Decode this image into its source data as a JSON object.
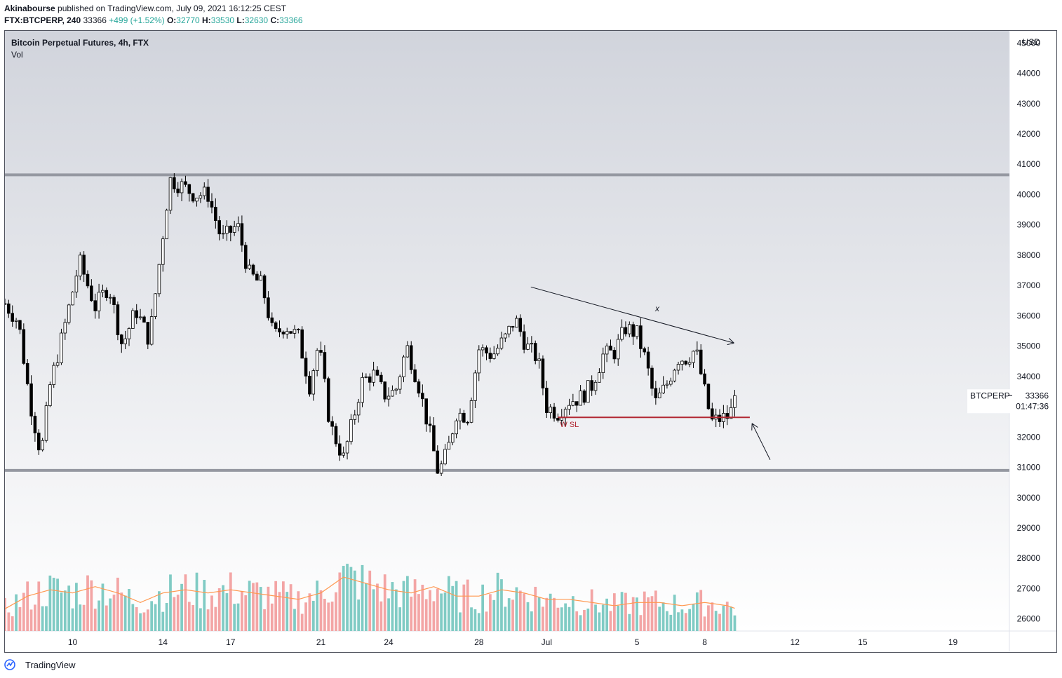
{
  "header": {
    "author": "Akinabourse",
    "published_text": "published on TradingView.com, July 09, 2021 16:12:25 CEST",
    "symbol_line": "FTX:BTCPERP, 240",
    "last": "33366",
    "change": "+499 (+1.52%)",
    "open_label": "O:",
    "open": "32770",
    "high_label": "H:",
    "high": "33530",
    "low_label": "L:",
    "low": "32630",
    "close_label": "C:",
    "close": "33366"
  },
  "legend": {
    "title": "Bitcoin Perpetual Futures, 4h, FTX",
    "vol": "Vol"
  },
  "footer": {
    "brand": "TradingView",
    "logo_icon": "tradingview-logo-icon"
  },
  "chart_data": {
    "type": "candlestick",
    "title": "Bitcoin Perpetual Futures, 4h, FTX",
    "currency": "USD",
    "y_ticks": [
      26000,
      27000,
      28000,
      29000,
      30000,
      31000,
      32000,
      33000,
      34000,
      35000,
      36000,
      37000,
      38000,
      39000,
      40000,
      41000,
      42000,
      43000,
      44000,
      45000
    ],
    "ylim": [
      25600,
      45400
    ],
    "x_start_day": 7.0,
    "x_end_day": 51.5,
    "x_ticks": [
      {
        "label": "10",
        "day": 10
      },
      {
        "label": "14",
        "day": 14
      },
      {
        "label": "17",
        "day": 17
      },
      {
        "label": "21",
        "day": 21
      },
      {
        "label": "24",
        "day": 24
      },
      {
        "label": "28",
        "day": 28
      },
      {
        "label": "Jul",
        "day": 31
      },
      {
        "label": "5",
        "day": 35
      },
      {
        "label": "8",
        "day": 38
      },
      {
        "label": "12",
        "day": 42
      },
      {
        "label": "15",
        "day": 45
      },
      {
        "label": "19",
        "day": 49
      }
    ],
    "horizontal_levels": [
      {
        "value": 40650,
        "color": "#9598a1"
      },
      {
        "value": 30900,
        "color": "#9598a1"
      }
    ],
    "stop_level": {
      "value": 32650,
      "label": "W SL",
      "color": "#b22833",
      "from_day": 31.5,
      "to_day": 40.0
    },
    "trendline": {
      "from_day": 30.3,
      "from_value": 36950,
      "to_day": 39.3,
      "to_value": 35100
    },
    "trend_marker": {
      "label": "x",
      "day": 35.9,
      "value": 36150
    },
    "arrow_up": {
      "from_day": 40.9,
      "from_value": 31250,
      "to_day": 40.1,
      "to_value": 32450
    },
    "price_tag": {
      "symbol": "BTCPERP",
      "value": "33366",
      "countdown": "01:47:36"
    },
    "keypoints": [
      [
        7.0,
        36400
      ],
      [
        7.6,
        35800
      ],
      [
        8.1,
        33200
      ],
      [
        8.6,
        31400
      ],
      [
        9.0,
        33700
      ],
      [
        9.6,
        35500
      ],
      [
        10.3,
        37800
      ],
      [
        11.0,
        36300
      ],
      [
        11.6,
        37000
      ],
      [
        12.2,
        35000
      ],
      [
        12.8,
        36200
      ],
      [
        13.4,
        35200
      ],
      [
        13.8,
        37500
      ],
      [
        14.3,
        40500
      ],
      [
        14.8,
        40300
      ],
      [
        15.4,
        40000
      ],
      [
        16.0,
        40000
      ],
      [
        16.6,
        38500
      ],
      [
        17.3,
        39000
      ],
      [
        17.8,
        37400
      ],
      [
        18.4,
        37000
      ],
      [
        18.9,
        35300
      ],
      [
        19.4,
        35700
      ],
      [
        20.0,
        35300
      ],
      [
        20.5,
        33700
      ],
      [
        20.9,
        35100
      ],
      [
        21.4,
        32400
      ],
      [
        22.0,
        31300
      ],
      [
        22.4,
        32500
      ],
      [
        22.8,
        33800
      ],
      [
        23.3,
        34100
      ],
      [
        23.8,
        33400
      ],
      [
        24.3,
        33500
      ],
      [
        24.8,
        35000
      ],
      [
        25.3,
        33800
      ],
      [
        25.8,
        32200
      ],
      [
        26.2,
        30800
      ],
      [
        26.6,
        31500
      ],
      [
        27.0,
        32800
      ],
      [
        27.5,
        32700
      ],
      [
        28.0,
        34900
      ],
      [
        28.6,
        34700
      ],
      [
        29.2,
        35300
      ],
      [
        29.6,
        35900
      ],
      [
        30.1,
        35000
      ],
      [
        30.6,
        34600
      ],
      [
        31.0,
        33000
      ],
      [
        31.5,
        32800
      ],
      [
        32.0,
        33200
      ],
      [
        32.5,
        33300
      ],
      [
        33.0,
        33700
      ],
      [
        33.5,
        34700
      ],
      [
        34.0,
        34800
      ],
      [
        34.5,
        35600
      ],
      [
        35.0,
        35400
      ],
      [
        35.4,
        34500
      ],
      [
        35.8,
        33100
      ],
      [
        36.3,
        33700
      ],
      [
        36.8,
        34600
      ],
      [
        37.2,
        34600
      ],
      [
        37.6,
        34900
      ],
      [
        38.0,
        33500
      ],
      [
        38.3,
        32500
      ],
      [
        38.7,
        32600
      ],
      [
        39.1,
        32700
      ],
      [
        39.4,
        33366
      ]
    ],
    "volume_ylim": [
      0,
      4200
    ],
    "volume_keypoints": [
      [
        7.0,
        700
      ],
      [
        8.0,
        1100
      ],
      [
        9.0,
        1300
      ],
      [
        10.0,
        1200
      ],
      [
        11.0,
        1400
      ],
      [
        12.0,
        1200
      ],
      [
        13.0,
        900
      ],
      [
        14.0,
        1200
      ],
      [
        15.0,
        1300
      ],
      [
        16.0,
        1200
      ],
      [
        17.0,
        1300
      ],
      [
        18.0,
        1200
      ],
      [
        19.0,
        1100
      ],
      [
        20.0,
        1000
      ],
      [
        21.0,
        1200
      ],
      [
        22.0,
        1700
      ],
      [
        23.0,
        1500
      ],
      [
        24.0,
        1300
      ],
      [
        25.0,
        1200
      ],
      [
        26.0,
        1400
      ],
      [
        27.0,
        1100
      ],
      [
        28.0,
        1100
      ],
      [
        29.0,
        1300
      ],
      [
        30.0,
        1200
      ],
      [
        31.0,
        1000
      ],
      [
        32.0,
        1000
      ],
      [
        33.0,
        900
      ],
      [
        34.0,
        800
      ],
      [
        35.0,
        900
      ],
      [
        36.0,
        900
      ],
      [
        37.0,
        800
      ],
      [
        38.0,
        900
      ],
      [
        39.0,
        800
      ],
      [
        39.4,
        700
      ]
    ]
  }
}
